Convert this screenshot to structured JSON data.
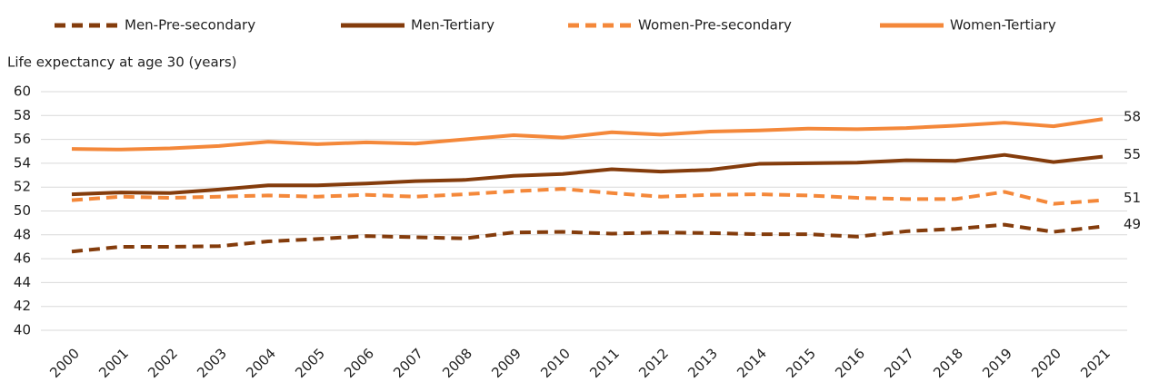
{
  "chart_data": {
    "type": "line",
    "y_label": "Life expectancy at age 30 (years)",
    "categories": [
      "2000",
      "2001",
      "2002",
      "2003",
      "2004",
      "2005",
      "2006",
      "2007",
      "2008",
      "2009",
      "2010",
      "2011",
      "2012",
      "2013",
      "2014",
      "2015",
      "2016",
      "2017",
      "2018",
      "2019",
      "2020",
      "2021"
    ],
    "ylim": [
      40,
      60
    ],
    "yticks": [
      40,
      42,
      44,
      46,
      48,
      50,
      52,
      54,
      56,
      58,
      60
    ],
    "grid": true,
    "legend": "top",
    "series": [
      {
        "name": "Men-Pre-secondary",
        "color": "#843c0c",
        "line_style": "dashed",
        "values": [
          46.6,
          47.0,
          47.0,
          47.05,
          47.45,
          47.65,
          47.9,
          47.8,
          47.7,
          48.2,
          48.25,
          48.1,
          48.2,
          48.15,
          48.05,
          48.05,
          47.85,
          48.3,
          48.5,
          48.85,
          48.25,
          48.7
        ],
        "value_labels": [
          null,
          null,
          null,
          null,
          null,
          null,
          null,
          null,
          null,
          null,
          null,
          null,
          null,
          null,
          null,
          null,
          null,
          null,
          null,
          null,
          null,
          "49"
        ]
      },
      {
        "name": "Men-Tertiary",
        "color": "#843c0c",
        "line_style": "solid",
        "values": [
          51.4,
          51.55,
          51.5,
          51.8,
          52.15,
          52.15,
          52.3,
          52.5,
          52.6,
          52.95,
          53.1,
          53.5,
          53.3,
          53.45,
          53.95,
          54.0,
          54.05,
          54.25,
          54.2,
          54.7,
          54.1,
          54.55
        ],
        "value_labels": [
          null,
          null,
          null,
          null,
          null,
          null,
          null,
          null,
          null,
          null,
          null,
          null,
          null,
          null,
          null,
          null,
          null,
          null,
          null,
          null,
          null,
          "55"
        ]
      },
      {
        "name": "Women-Pre-secondary",
        "color": "#f4883a",
        "line_style": "dashed",
        "values": [
          50.9,
          51.2,
          51.1,
          51.2,
          51.3,
          51.2,
          51.35,
          51.2,
          51.4,
          51.65,
          51.85,
          51.5,
          51.2,
          51.35,
          51.4,
          51.3,
          51.1,
          51.0,
          51.0,
          51.6,
          50.6,
          50.9
        ],
        "value_labels": [
          null,
          null,
          null,
          null,
          null,
          null,
          null,
          null,
          null,
          null,
          null,
          null,
          null,
          null,
          null,
          null,
          null,
          null,
          null,
          null,
          null,
          "51"
        ]
      },
      {
        "name": "Women-Tertiary",
        "color": "#f4883a",
        "line_style": "solid",
        "values": [
          55.2,
          55.15,
          55.25,
          55.45,
          55.8,
          55.6,
          55.75,
          55.65,
          56.0,
          56.35,
          56.15,
          56.6,
          56.4,
          56.65,
          56.75,
          56.9,
          56.85,
          56.95,
          57.15,
          57.4,
          57.1,
          57.7
        ],
        "value_labels": [
          null,
          null,
          null,
          null,
          null,
          null,
          null,
          null,
          null,
          null,
          null,
          null,
          null,
          null,
          null,
          null,
          null,
          null,
          null,
          null,
          null,
          "58"
        ]
      }
    ]
  }
}
